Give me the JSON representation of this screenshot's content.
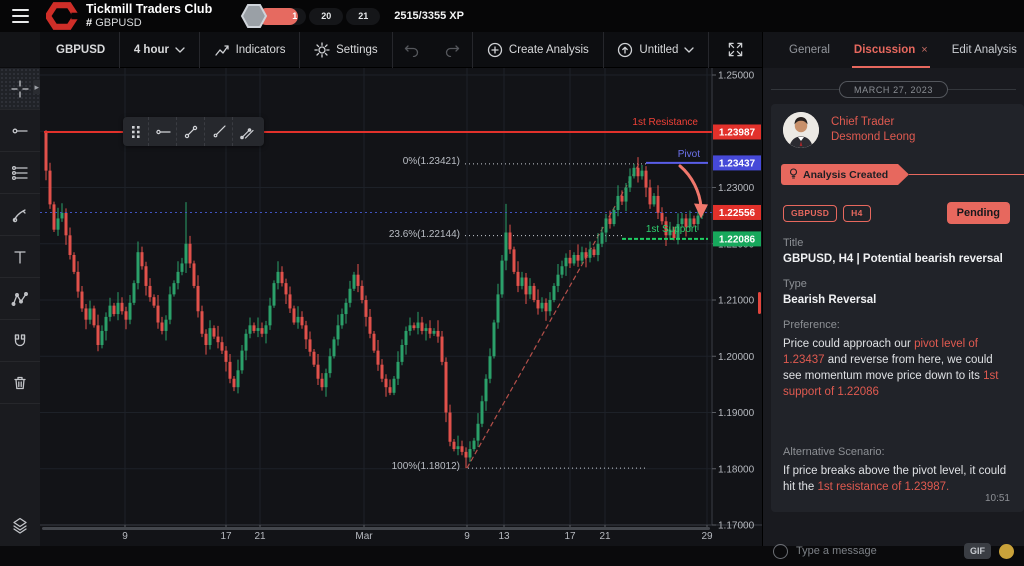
{
  "top_bar": {
    "app_title": "Tickmill Traders Club",
    "channel_hash": "#",
    "channel": "GBPUSD",
    "levels": {
      "current": "1",
      "mid": "20",
      "next": "21"
    },
    "xp_text": "2515/3355 XP"
  },
  "chart_toolbar": {
    "symbol": "GBPUSD",
    "interval": "4 hour",
    "indicators_label": "Indicators",
    "settings_label": "Settings",
    "create_analysis_label": "Create Analysis",
    "save_label": "Untitled"
  },
  "chart": {
    "overlay_labels": {
      "resistance": "1st Resistance",
      "pivot": "Pivot",
      "support": "1st Support",
      "fib_0": "0%(1.23421)",
      "fib_236": "23.6%(1.22144)",
      "fib_100": "100%(1.18012)"
    }
  },
  "chart_data": {
    "type": "candlestick",
    "symbol": "GBPUSD",
    "interval": "4 hour",
    "ylim": [
      1.17,
      1.25
    ],
    "y_gridlines": [
      1.17,
      1.18,
      1.19,
      1.2,
      1.21,
      1.22,
      1.23,
      1.24,
      1.25
    ],
    "axis_price_labels": [
      {
        "text": "1.25000",
        "price": 1.25
      },
      {
        "text": "1.23000",
        "price": 1.23
      },
      {
        "text": "1.22000",
        "price": 1.22
      },
      {
        "text": "1.21000",
        "price": 1.21
      },
      {
        "text": "1.20000",
        "price": 1.2
      },
      {
        "text": "1.19000",
        "price": 1.19
      },
      {
        "text": "1.18000",
        "price": 1.18
      },
      {
        "text": "1.17000",
        "price": 1.17
      }
    ],
    "x_ticks": [
      {
        "label": "9",
        "x": 85
      },
      {
        "label": "17",
        "x": 186
      },
      {
        "label": "21",
        "x": 220
      },
      {
        "label": "Mar",
        "x": 324
      },
      {
        "label": "9",
        "x": 427
      },
      {
        "label": "13",
        "x": 464
      },
      {
        "label": "17",
        "x": 530
      },
      {
        "label": "21",
        "x": 565
      },
      {
        "label": "29",
        "x": 667
      }
    ],
    "levels": {
      "resistance": 1.23987,
      "pivot": 1.23437,
      "current": 1.22556,
      "support": 1.22086,
      "fib_0": 1.23421,
      "fib_236": 1.22144,
      "fib_100": 1.18012
    },
    "price_badges": [
      {
        "text": "1.23987",
        "price": 1.23987,
        "color": "#e2312b"
      },
      {
        "text": "1.23437",
        "price": 1.23437,
        "color": "#4649d8"
      },
      {
        "text": "1.22556",
        "price": 1.22556,
        "color": "#e2312b"
      },
      {
        "text": "1.22086",
        "price": 1.22086,
        "color": "#17a85c"
      }
    ],
    "colors": {
      "up": "#2ba06a",
      "down": "#e1514b"
    },
    "first_open": 1.24,
    "closes": [
      1.233,
      1.227,
      1.2225,
      1.2245,
      1.2255,
      1.2215,
      1.218,
      1.215,
      1.2115,
      1.2085,
      1.2065,
      1.2085,
      1.2055,
      1.202,
      1.2045,
      1.207,
      1.209,
      1.2075,
      1.2095,
      1.208,
      1.2065,
      1.2095,
      1.213,
      1.2185,
      1.216,
      1.2125,
      1.2105,
      1.209,
      1.206,
      1.2045,
      1.2065,
      1.211,
      1.213,
      1.215,
      1.2165,
      1.22,
      1.2165,
      1.2125,
      1.208,
      1.204,
      1.202,
      1.205,
      1.2035,
      1.2025,
      1.201,
      1.199,
      1.196,
      1.1945,
      1.1975,
      1.201,
      1.204,
      1.2055,
      1.2045,
      1.205,
      1.204,
      1.2055,
      1.209,
      1.213,
      1.215,
      1.213,
      1.211,
      1.2085,
      1.206,
      1.207,
      1.2055,
      1.203,
      1.2008,
      1.1985,
      1.196,
      1.1945,
      1.197,
      1.2,
      1.203,
      1.2055,
      1.2075,
      1.2095,
      1.212,
      1.2145,
      1.2125,
      1.21,
      1.207,
      1.204,
      1.201,
      1.1985,
      1.196,
      1.1945,
      1.1935,
      1.196,
      1.199,
      1.202,
      1.2045,
      1.2055,
      1.205,
      1.206,
      1.2045,
      1.205,
      1.204,
      1.2045,
      1.2035,
      1.199,
      1.19,
      1.1848,
      1.1835,
      1.184,
      1.183,
      1.182,
      1.1835,
      1.185,
      1.188,
      1.192,
      1.196,
      1.2,
      1.206,
      1.211,
      1.217,
      1.222,
      1.219,
      1.215,
      1.2125,
      1.214,
      1.211,
      1.2125,
      1.21,
      1.2085,
      1.2095,
      1.208,
      1.21,
      1.2125,
      1.2145,
      1.216,
      1.2175,
      1.2165,
      1.218,
      1.217,
      1.2185,
      1.2175,
      1.219,
      1.218,
      1.22,
      1.222,
      1.2245,
      1.2235,
      1.226,
      1.2285,
      1.2275,
      1.23,
      1.232,
      1.2335,
      1.232,
      1.233,
      1.23,
      1.227,
      1.2285,
      1.2255,
      1.224,
      1.2215,
      1.2225,
      1.221,
      1.2235,
      1.2245,
      1.223,
      1.2245,
      1.2235,
      1.225,
      1.22556
    ],
    "wick_overrides": {
      "0": {
        "h": 1.2402
      },
      "4": {
        "h": 1.2272
      },
      "35": {
        "h": 1.2274
      },
      "47": {
        "l": 1.1938
      },
      "86": {
        "l": 1.1931
      },
      "105": {
        "l": 1.18012
      },
      "115": {
        "h": 1.2271
      },
      "147": {
        "h": 1.23421
      },
      "155": {
        "l": 1.2196
      }
    }
  },
  "panel": {
    "tabs": {
      "general": "General",
      "discussion": "Discussion",
      "discussion_close": "×",
      "edit": "Edit Analysis"
    },
    "date_divider": "MARCH 27, 2023",
    "author_role": "Chief Trader",
    "author_name": "Desmond Leong",
    "ribbon_label": "Analysis Created",
    "pair_badge": "GBPUSD",
    "tf_badge": "H4",
    "status": "Pending",
    "title_label": "Title",
    "title": "GBPUSD, H4 | Potential bearish reversal",
    "type_label": "Type",
    "type": "Bearish Reversal",
    "preference_label": "Preference:",
    "preference_segments": [
      {
        "text": "Price could approach our ",
        "hl": false
      },
      {
        "text": "pivot level of 1.23437",
        "hl": true
      },
      {
        "text": " and reverse from here, we could see momentum move price down to its ",
        "hl": false
      },
      {
        "text": "1st support of 1.22086",
        "hl": true
      }
    ],
    "alt_label": "Alternative Scenario:",
    "alt_segments": [
      {
        "text": "If price breaks above the pivot level, it could hit the ",
        "hl": false
      },
      {
        "text": "1st resistance of 1.23987.",
        "hl": true
      }
    ],
    "time": "10:51",
    "composer_placeholder": "Type a message",
    "gif_label": "GIF"
  }
}
